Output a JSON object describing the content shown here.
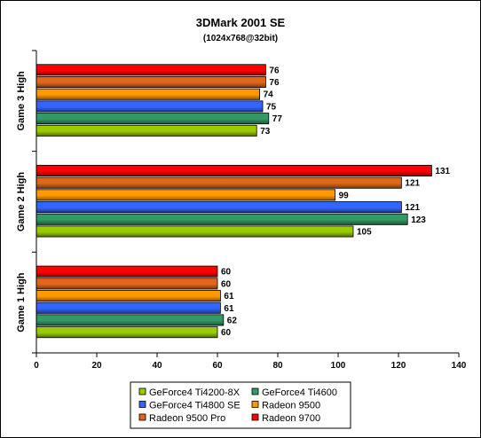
{
  "chart_data": {
    "type": "bar",
    "orientation": "horizontal",
    "title": "3DMark 2001 SE",
    "subtitle": "(1024x768@32bit)",
    "categories": [
      "Game 3 High",
      "Game 2 High",
      "Game 1 High"
    ],
    "series": [
      {
        "name": "GeForce4 Ti4200-8X",
        "color": "#99cc00",
        "values": [
          73,
          105,
          60
        ]
      },
      {
        "name": "GeForce4 Ti4600",
        "color": "#339966",
        "values": [
          77,
          123,
          62
        ]
      },
      {
        "name": "GeForce4 Ti4800 SE",
        "color": "#3366ff",
        "values": [
          75,
          121,
          61
        ]
      },
      {
        "name": "Radeon 9500",
        "color": "#ff9900",
        "values": [
          74,
          99,
          61
        ]
      },
      {
        "name": "Radeon 9500 Pro",
        "color": "#e0661a",
        "values": [
          76,
          121,
          60
        ]
      },
      {
        "name": "Radeon 9700",
        "color": "#ff0000",
        "values": [
          76,
          131,
          60
        ]
      }
    ],
    "xlim": [
      0,
      140
    ],
    "xticks": [
      0,
      20,
      40,
      60,
      80,
      100,
      120,
      140
    ],
    "grid": false,
    "legend": "bottom"
  }
}
